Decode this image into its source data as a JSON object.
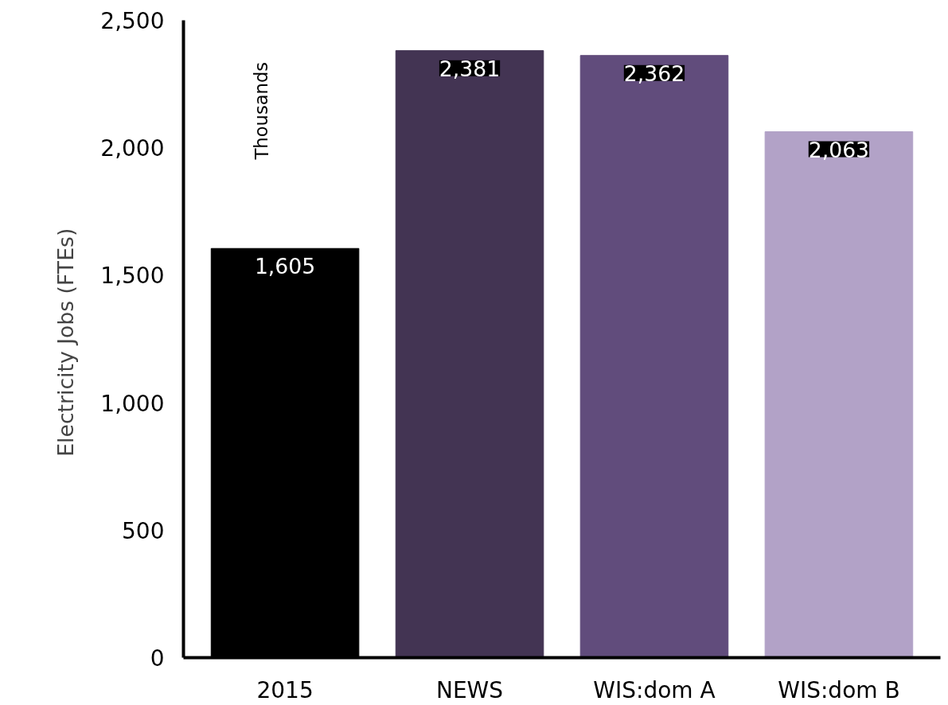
{
  "chart_data": {
    "type": "bar",
    "ylabel": "Electricity  Jobs (FTEs)",
    "annotations": [
      "Thousands"
    ],
    "categories": [
      "2015",
      "NEWS",
      "WIS:dom A",
      "WIS:dom B"
    ],
    "values": [
      1605,
      2381,
      2362,
      2063
    ],
    "colors": [
      "#000000",
      "#433453",
      "#614c7c",
      "#b2a2c7"
    ],
    "ylim": [
      0,
      2500
    ],
    "yticks": [
      0,
      500,
      {
        "value": 1000,
        "label": "1,000"
      },
      {
        "value": 1500,
        "label": "1,500"
      },
      {
        "value": 2000,
        "label": "2,000"
      },
      {
        "value": 2500,
        "label": "2,500"
      }
    ],
    "value_labels": [
      "1,605",
      "2,381",
      "2,362",
      "2,063"
    ],
    "grid": false
  }
}
